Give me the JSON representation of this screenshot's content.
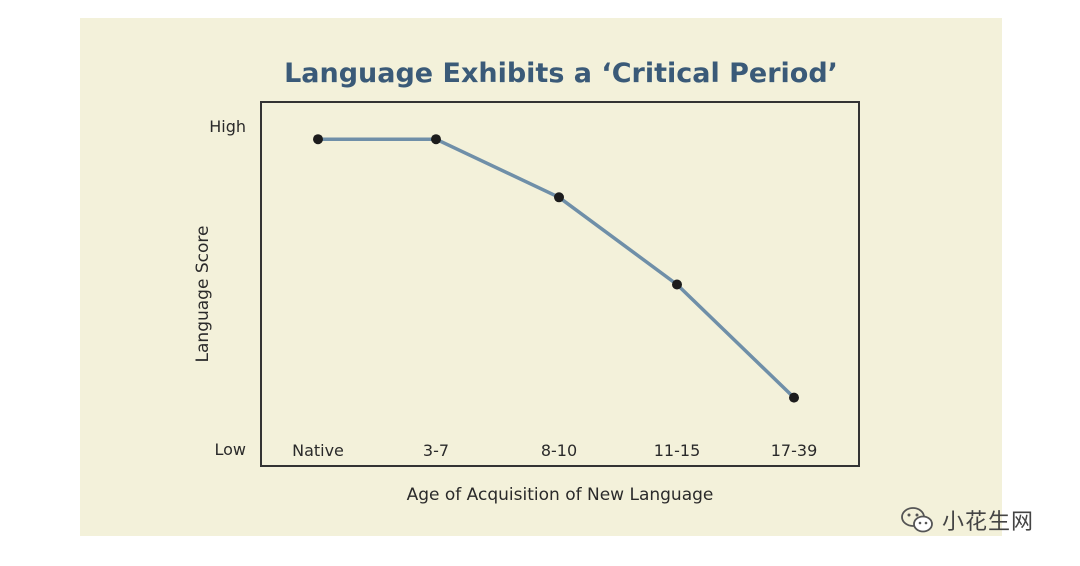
{
  "chart_data": {
    "type": "line",
    "title": "Language Exhibits a ‘Critical Period’",
    "xlabel": "Age of Acquisition of New Language",
    "ylabel": "Language Score",
    "y_levels": {
      "high": "High",
      "low": "Low"
    },
    "categories": [
      "Native",
      "3-7",
      "8-10",
      "11-15",
      "17-39"
    ],
    "values": [
      0.95,
      0.95,
      0.77,
      0.5,
      0.15
    ],
    "ylim": [
      0,
      1
    ],
    "grid": false,
    "legend": "none",
    "colors": {
      "line": "#6f8fa8",
      "marker": "#1c1c1c",
      "title": "#3a5a78",
      "frame": "#333333",
      "panel": "#f3f1da"
    }
  },
  "watermark": {
    "text": "小花生网",
    "icon": "wechat-icon"
  }
}
